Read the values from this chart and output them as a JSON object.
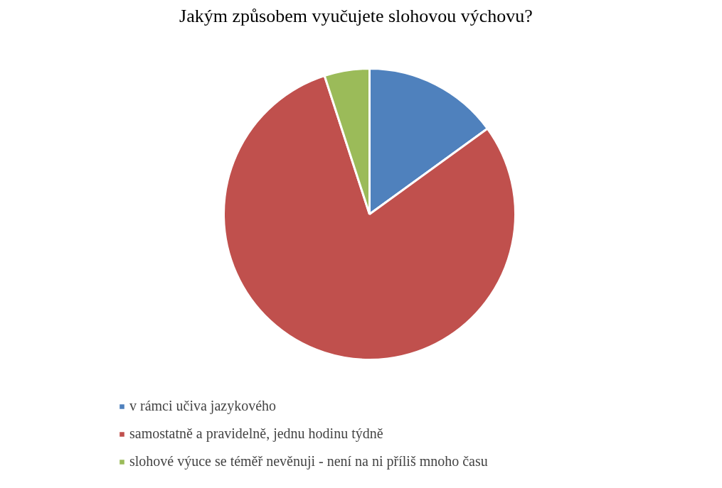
{
  "chart_data": {
    "type": "pie",
    "title": "Jakým způsobem vyučujete slohovou výchovu?",
    "categories": [
      "v rámci učiva jazykového",
      "samostatně a pravidelně, jednu hodinu týdně",
      "slohové výuce se téměř nevěnuji - není na ni příliš mnoho času"
    ],
    "values": [
      15,
      80,
      5
    ],
    "colors": [
      "#4f81bd",
      "#c0504d",
      "#9bbb59"
    ],
    "legend": "bottom"
  }
}
